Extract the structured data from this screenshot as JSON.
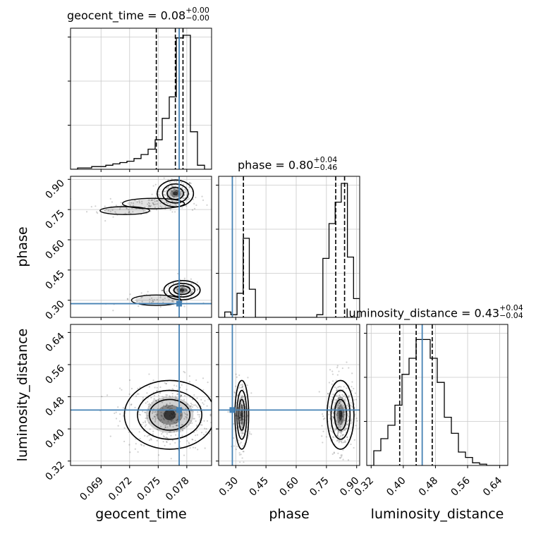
{
  "chart_data": {
    "type": "corner",
    "parameters": [
      "geocent_time",
      "phase",
      "luminosity_distance"
    ],
    "truths": {
      "geocent_time": 0.0772,
      "phase": 0.283,
      "luminosity_distance": 0.447
    },
    "titles": [
      {
        "param": "geocent_time",
        "prefix": "geocent_time = 0.08",
        "plus": "+0.00",
        "minus": "−0.00"
      },
      {
        "param": "phase",
        "prefix": "phase = 0.80",
        "plus": "+0.04",
        "minus": "−0.46"
      },
      {
        "param": "luminosity_distance",
        "prefix": "luminosity_distance = 0.43",
        "plus": "+0.04",
        "minus": "−0.04"
      }
    ],
    "axis_labels": {
      "x": [
        "geocent_time",
        "phase",
        "luminosity_distance"
      ],
      "y": [
        "phase",
        "luminosity_distance"
      ]
    },
    "ranges": {
      "geocent_time": [
        0.0658,
        0.0806
      ],
      "phase": [
        0.215,
        0.915
      ],
      "luminosity_distance": [
        0.309,
        0.66
      ]
    },
    "ticks": {
      "geocent_time": [
        "0.069",
        "0.072",
        "0.075",
        "0.078"
      ],
      "phase": [
        "0.30",
        "0.45",
        "0.60",
        "0.75",
        "0.90"
      ],
      "luminosity_distance": [
        "0.32",
        "0.40",
        "0.48",
        "0.56",
        "0.64"
      ]
    },
    "quantiles": {
      "geocent_time": [
        0.0748,
        0.0768,
        0.0776
      ],
      "phase": [
        0.338,
        0.796,
        0.84
      ],
      "luminosity_distance": [
        0.391,
        0.432,
        0.472
      ]
    },
    "histograms": {
      "geocent_time": [
        0.0,
        0.01,
        0.01,
        0.02,
        0.02,
        0.03,
        0.04,
        0.05,
        0.06,
        0.08,
        0.11,
        0.15,
        0.22,
        0.38,
        0.54,
        0.98,
        1.0,
        0.28,
        0.03,
        0.0
      ],
      "phase": [
        0.0,
        0.04,
        0.02,
        0.18,
        0.59,
        0.21,
        0.0,
        0.0,
        0.0,
        0.0,
        0.0,
        0.0,
        0.0,
        0.0,
        0.0,
        0.0,
        0.02,
        0.44,
        0.7,
        0.86,
        1.0,
        0.45,
        0.14
      ],
      "luminosity_distance": [
        0.0,
        0.11,
        0.2,
        0.3,
        0.45,
        0.68,
        0.8,
        0.94,
        0.94,
        0.8,
        0.62,
        0.36,
        0.24,
        0.1,
        0.06,
        0.02,
        0.01,
        0.0,
        0.0,
        0.0
      ]
    },
    "scatter_clusters": [
      {
        "x": "geocent_time",
        "y": "phase",
        "center": [
          0.0768,
          0.83
        ],
        "sigma": [
          0.001,
          0.035
        ],
        "n": 160
      },
      {
        "x": "geocent_time",
        "y": "phase",
        "center": [
          0.0745,
          0.78
        ],
        "sigma": [
          0.0025,
          0.02
        ],
        "n": 80
      },
      {
        "x": "geocent_time",
        "y": "phase",
        "center": [
          0.0715,
          0.745
        ],
        "sigma": [
          0.002,
          0.015
        ],
        "n": 40
      },
      {
        "x": "geocent_time",
        "y": "phase",
        "center": [
          0.0775,
          0.35
        ],
        "sigma": [
          0.001,
          0.025
        ],
        "n": 120
      },
      {
        "x": "geocent_time",
        "y": "phase",
        "center": [
          0.0748,
          0.3
        ],
        "sigma": [
          0.002,
          0.02
        ],
        "n": 50
      },
      {
        "x": "geocent_time",
        "y": "luminosity_distance",
        "center": [
          0.0762,
          0.435
        ],
        "sigma": [
          0.0025,
          0.045
        ],
        "n": 450
      },
      {
        "x": "phase",
        "y": "luminosity_distance",
        "center": [
          0.33,
          0.435
        ],
        "sigma": [
          0.018,
          0.045
        ],
        "n": 200
      },
      {
        "x": "phase",
        "y": "luminosity_distance",
        "center": [
          0.82,
          0.435
        ],
        "sigma": [
          0.035,
          0.045
        ],
        "n": 380
      }
    ],
    "grid": true
  }
}
